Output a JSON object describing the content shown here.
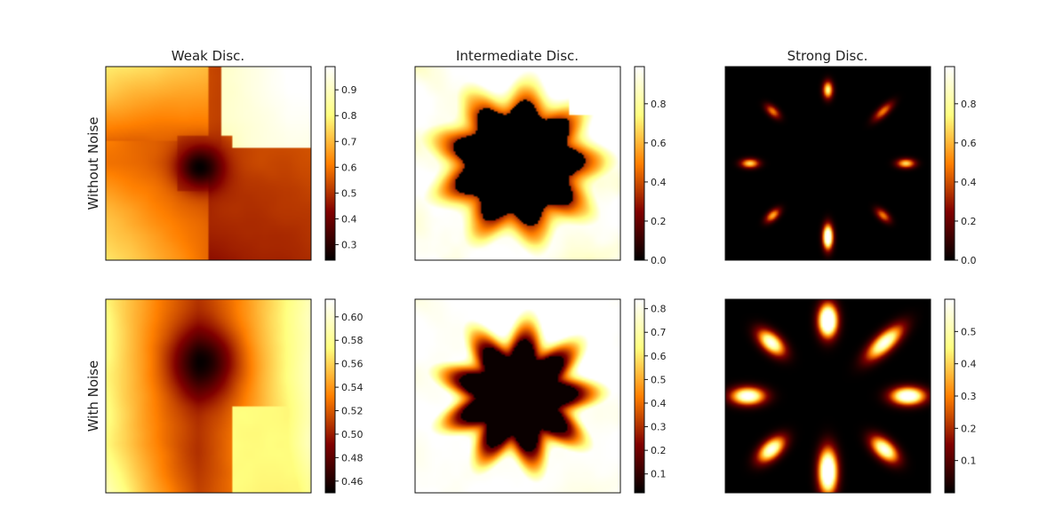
{
  "chart_data": {
    "type": "heatmap",
    "colormap": "afmhot",
    "column_titles": [
      "Weak Disc.",
      "Intermediate Disc.",
      "Strong Disc."
    ],
    "row_labels": [
      "Without Noise",
      "With Noise"
    ],
    "panels": [
      {
        "row": 0,
        "col": 0,
        "pattern": "weak",
        "noise": false,
        "vmin": 0.24,
        "vmax": 0.99,
        "colorbar_ticks": [
          "0.3",
          "0.4",
          "0.5",
          "0.6",
          "0.7",
          "0.8",
          "0.9"
        ]
      },
      {
        "row": 0,
        "col": 1,
        "pattern": "intermediate",
        "noise": false,
        "vmin": 0.0,
        "vmax": 0.99,
        "colorbar_ticks": [
          "0.0",
          "0.2",
          "0.4",
          "0.6",
          "0.8"
        ]
      },
      {
        "row": 0,
        "col": 2,
        "pattern": "strong",
        "noise": false,
        "vmin": 0.0,
        "vmax": 0.99,
        "colorbar_ticks": [
          "0.0",
          "0.2",
          "0.4",
          "0.6",
          "0.8"
        ]
      },
      {
        "row": 1,
        "col": 0,
        "pattern": "weak",
        "noise": true,
        "vmin": 0.45,
        "vmax": 0.615,
        "colorbar_ticks": [
          "0.46",
          "0.48",
          "0.50",
          "0.52",
          "0.54",
          "0.56",
          "0.58",
          "0.60"
        ]
      },
      {
        "row": 1,
        "col": 1,
        "pattern": "intermediate",
        "noise": true,
        "vmin": 0.02,
        "vmax": 0.84,
        "colorbar_ticks": [
          "0.1",
          "0.2",
          "0.3",
          "0.4",
          "0.5",
          "0.6",
          "0.7",
          "0.8"
        ]
      },
      {
        "row": 1,
        "col": 2,
        "pattern": "strong",
        "noise": true,
        "vmin": 0.0,
        "vmax": 0.6,
        "colorbar_ticks": [
          "0.1",
          "0.2",
          "0.3",
          "0.4",
          "0.5"
        ]
      }
    ]
  }
}
